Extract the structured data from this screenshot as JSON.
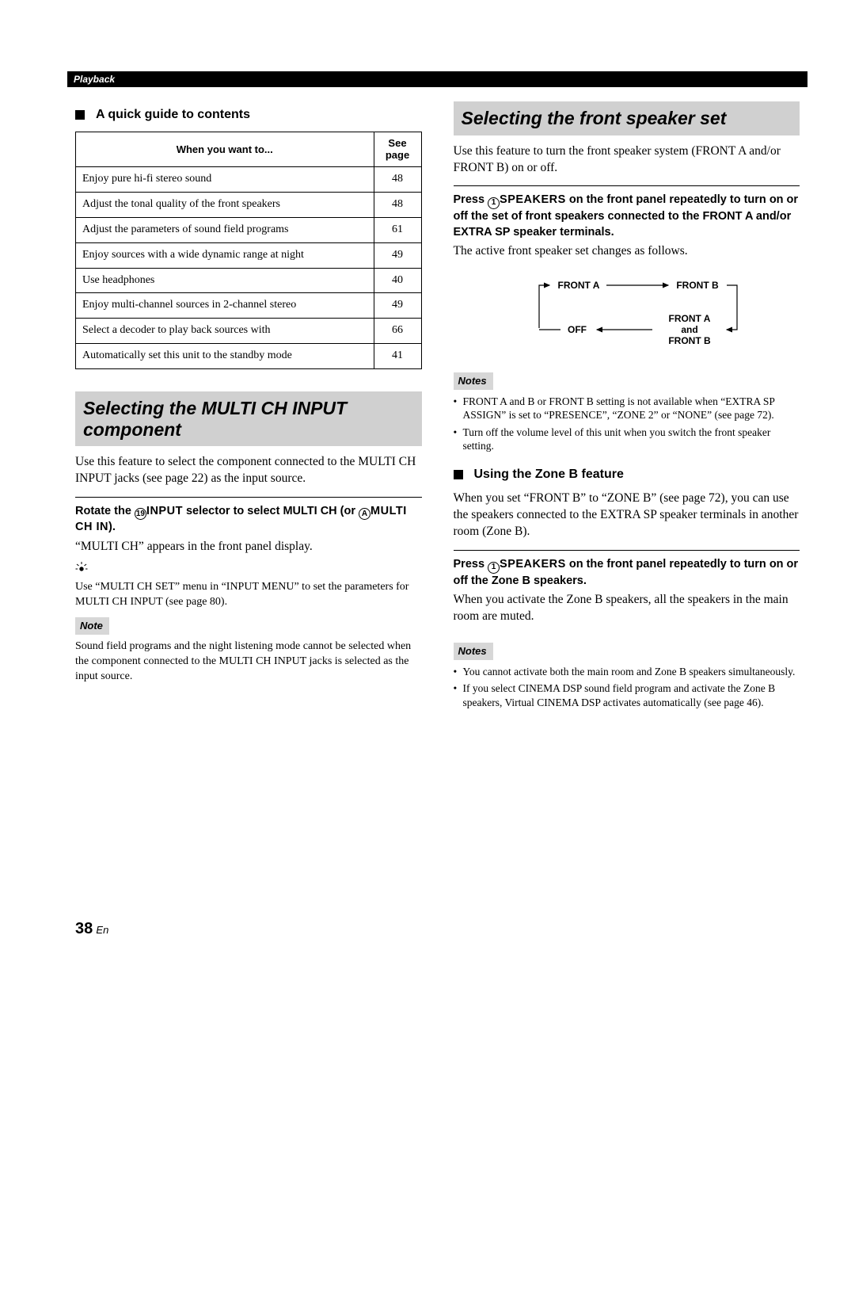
{
  "header": {
    "section": "Playback"
  },
  "left": {
    "quick_guide_heading": "A quick guide to contents",
    "table": {
      "col1": "When you want to...",
      "col2_l1": "See",
      "col2_l2": "page",
      "rows": [
        {
          "text": "Enjoy pure hi-fi stereo sound",
          "page": "48"
        },
        {
          "text": "Adjust the tonal quality of the front speakers",
          "page": "48"
        },
        {
          "text": "Adjust the parameters of sound field programs",
          "page": "61"
        },
        {
          "text": "Enjoy sources with a wide dynamic range at night",
          "page": "49"
        },
        {
          "text": "Use headphones",
          "page": "40"
        },
        {
          "text": "Enjoy multi-channel sources in 2-channel stereo",
          "page": "49"
        },
        {
          "text": "Select a decoder to play back sources with",
          "page": "66"
        },
        {
          "text": "Automatically set this unit to the standby mode",
          "page": "41"
        }
      ]
    },
    "banner": "Selecting the MULTI CH INPUT component",
    "intro": "Use this feature to select the component connected to the MULTI CH INPUT jacks (see page 22) as the input source.",
    "instr_rotate_1": "Rotate the ",
    "instr_rotate_num": "19",
    "instr_rotate_2": "INPUT",
    "instr_rotate_3": " selector to select MULTI CH (or ",
    "instr_rotate_letter": "A",
    "instr_rotate_4": "MULTI CH IN",
    "instr_rotate_5": ").",
    "display_text": "“MULTI CH” appears in the front panel display.",
    "tip_text": "Use “MULTI CH SET” menu in “INPUT MENU” to set the parameters for MULTI CH INPUT (see page 80).",
    "note_label": "Note",
    "note_body": "Sound field programs and the night listening mode cannot be selected when the component connected to the MULTI CH INPUT jacks is selected as the input source."
  },
  "right": {
    "banner": "Selecting the front speaker set",
    "intro": "Use this feature to turn the front speaker system (FRONT A and/or FRONT B) on or off.",
    "instr_press_1": "Press ",
    "instr_press_num": "1",
    "instr_press_2": "SPEAKERS",
    "instr_press_3": " on the front panel repeatedly to turn on or off the set of front speakers connected to the FRONT A and/or EXTRA SP speaker terminals.",
    "follows": "The active front speaker set changes as follows.",
    "diagram": {
      "front_a": "FRONT A",
      "front_b": "FRONT B",
      "off": "OFF",
      "mix_l1": "FRONT A",
      "mix_l2": "and",
      "mix_l3": "FRONT B"
    },
    "notes_label": "Notes",
    "notes1": [
      "FRONT A and B or FRONT B setting is not available when “EXTRA SP ASSIGN” is set to “PRESENCE”, “ZONE 2” or “NONE” (see page 72).",
      "Turn off the volume level of this unit when you switch the front speaker setting."
    ],
    "zoneb_heading": "Using the Zone B feature",
    "zoneb_body": "When you set “FRONT B” to “ZONE B” (see page 72), you can use the speakers connected to the EXTRA SP speaker terminals in another room (Zone B).",
    "zoneb_instr_1": "Press ",
    "zoneb_instr_num": "1",
    "zoneb_instr_2": "SPEAKERS",
    "zoneb_instr_3": " on the front panel repeatedly to turn on or off the Zone B speakers.",
    "zoneb_follows": "When you activate the Zone B speakers, all the speakers in the main room are muted.",
    "notes2_label": "Notes",
    "notes2": [
      "You cannot activate both the main room and Zone B speakers simultaneously.",
      "If you select CINEMA DSP sound field program and activate the Zone B speakers, Virtual CINEMA DSP activates automatically (see page 46)."
    ]
  },
  "footer": {
    "page": "38",
    "lang": "En"
  }
}
